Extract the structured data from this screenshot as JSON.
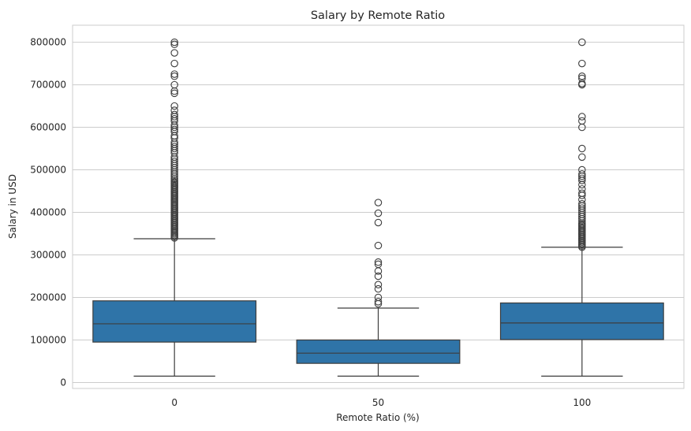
{
  "chart_data": {
    "type": "box",
    "title": "Salary by Remote Ratio",
    "xlabel": "Remote Ratio (%)",
    "ylabel": "Salary in USD",
    "ylim": [
      -14000,
      840000
    ],
    "yticks": [
      0,
      100000,
      200000,
      300000,
      400000,
      500000,
      600000,
      700000,
      800000
    ],
    "ytick_labels": [
      "0",
      "100000",
      "200000",
      "300000",
      "400000",
      "500000",
      "600000",
      "700000",
      "800000"
    ],
    "grid": true,
    "box_color": "#2f74a8",
    "categories": [
      "0",
      "50",
      "100"
    ],
    "boxes": [
      {
        "category": "0",
        "whisker_low": 15000,
        "q1": 95000,
        "median": 138000,
        "q3": 192000,
        "whisker_high": 338000,
        "outliers": [
          340000,
          343000,
          346000,
          349000,
          352000,
          355000,
          358000,
          361000,
          364000,
          367000,
          370000,
          373000,
          376000,
          379000,
          382000,
          385000,
          388000,
          391000,
          394000,
          397000,
          400000,
          403000,
          406000,
          409000,
          412000,
          415000,
          418000,
          421000,
          424000,
          427000,
          430000,
          433000,
          436000,
          439000,
          442000,
          445000,
          448000,
          451000,
          454000,
          457000,
          460000,
          463000,
          466000,
          469000,
          472000,
          476000,
          480000,
          485000,
          490000,
          495000,
          500000,
          505000,
          510000,
          515000,
          520000,
          525000,
          530000,
          540000,
          545000,
          550000,
          555000,
          560000,
          565000,
          575000,
          580000,
          590000,
          595000,
          600000,
          605000,
          615000,
          620000,
          625000,
          630000,
          640000,
          650000,
          680000,
          685000,
          700000,
          720000,
          725000,
          750000,
          775000,
          795000,
          800000
        ]
      },
      {
        "category": "50",
        "whisker_low": 15000,
        "q1": 45000,
        "median": 69000,
        "q3": 100000,
        "whisker_high": 175000,
        "outliers": [
          185000,
          190000,
          200000,
          220000,
          230000,
          250000,
          262000,
          278000,
          283000,
          322000,
          376000,
          398000,
          423000
        ]
      },
      {
        "category": "100",
        "whisker_low": 15000,
        "q1": 101000,
        "median": 140000,
        "q3": 187000,
        "whisker_high": 318000,
        "outliers": [
          318000,
          321000,
          324000,
          327000,
          330000,
          333000,
          336000,
          339000,
          342000,
          345000,
          348000,
          351000,
          354000,
          357000,
          360000,
          363000,
          366000,
          369000,
          372000,
          375000,
          380000,
          385000,
          390000,
          395000,
          400000,
          405000,
          410000,
          415000,
          420000,
          430000,
          440000,
          445000,
          455000,
          465000,
          475000,
          480000,
          485000,
          490000,
          500000,
          530000,
          550000,
          600000,
          615000,
          625000,
          700000,
          703000,
          715000,
          720000,
          750000,
          800000
        ]
      }
    ]
  }
}
